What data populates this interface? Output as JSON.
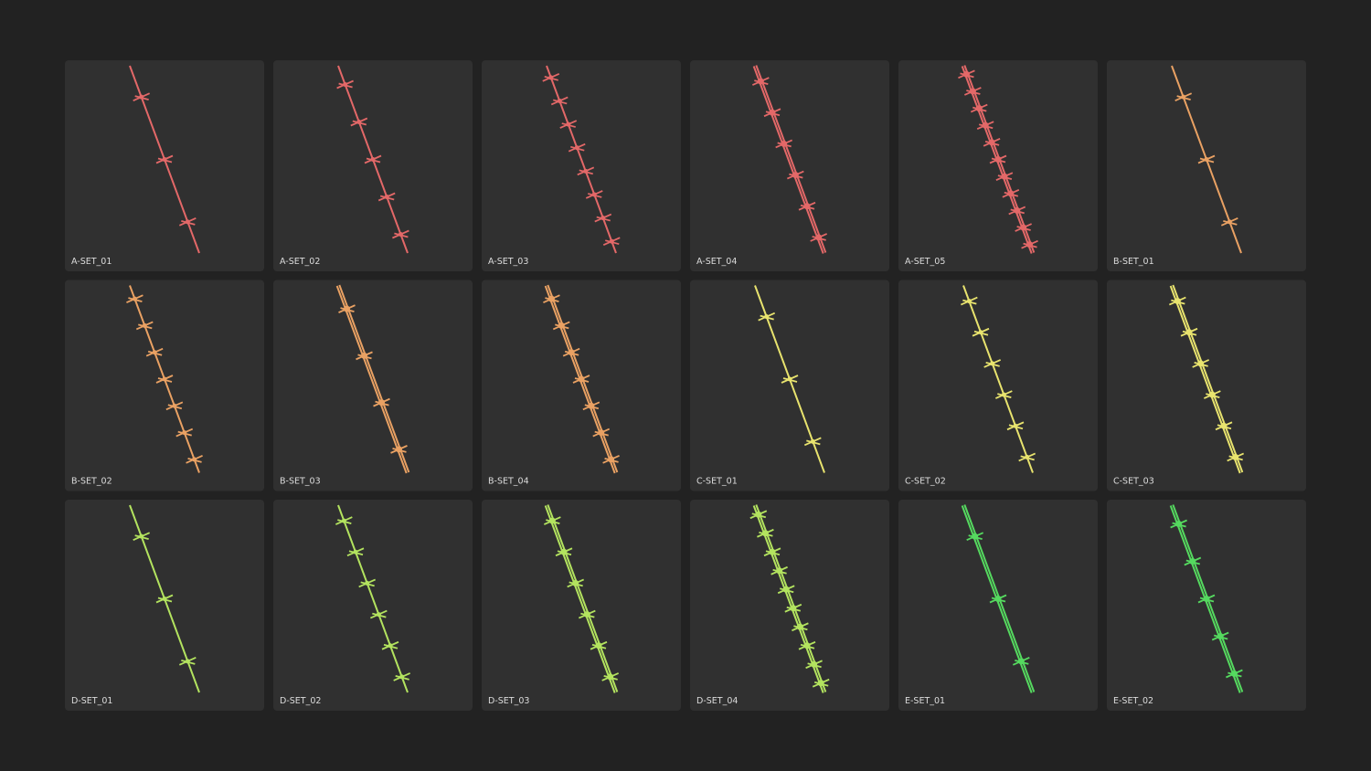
{
  "tiles": [
    {
      "label": "A-SET_01"
    },
    {
      "label": "A-SET_02"
    },
    {
      "label": "A-SET_03"
    },
    {
      "label": "A-SET_04"
    },
    {
      "label": "A-SET_05"
    },
    {
      "label": "B-SET_01"
    },
    {
      "label": "B-SET_02"
    },
    {
      "label": "B-SET_03"
    },
    {
      "label": "B-SET_04"
    },
    {
      "label": "C-SET_01"
    },
    {
      "label": "C-SET_02"
    },
    {
      "label": "C-SET_03"
    },
    {
      "label": "D-SET_01"
    },
    {
      "label": "D-SET_02"
    },
    {
      "label": "D-SET_03"
    },
    {
      "label": "D-SET_04"
    },
    {
      "label": "E-SET_01"
    },
    {
      "label": "E-SET_02"
    }
  ]
}
